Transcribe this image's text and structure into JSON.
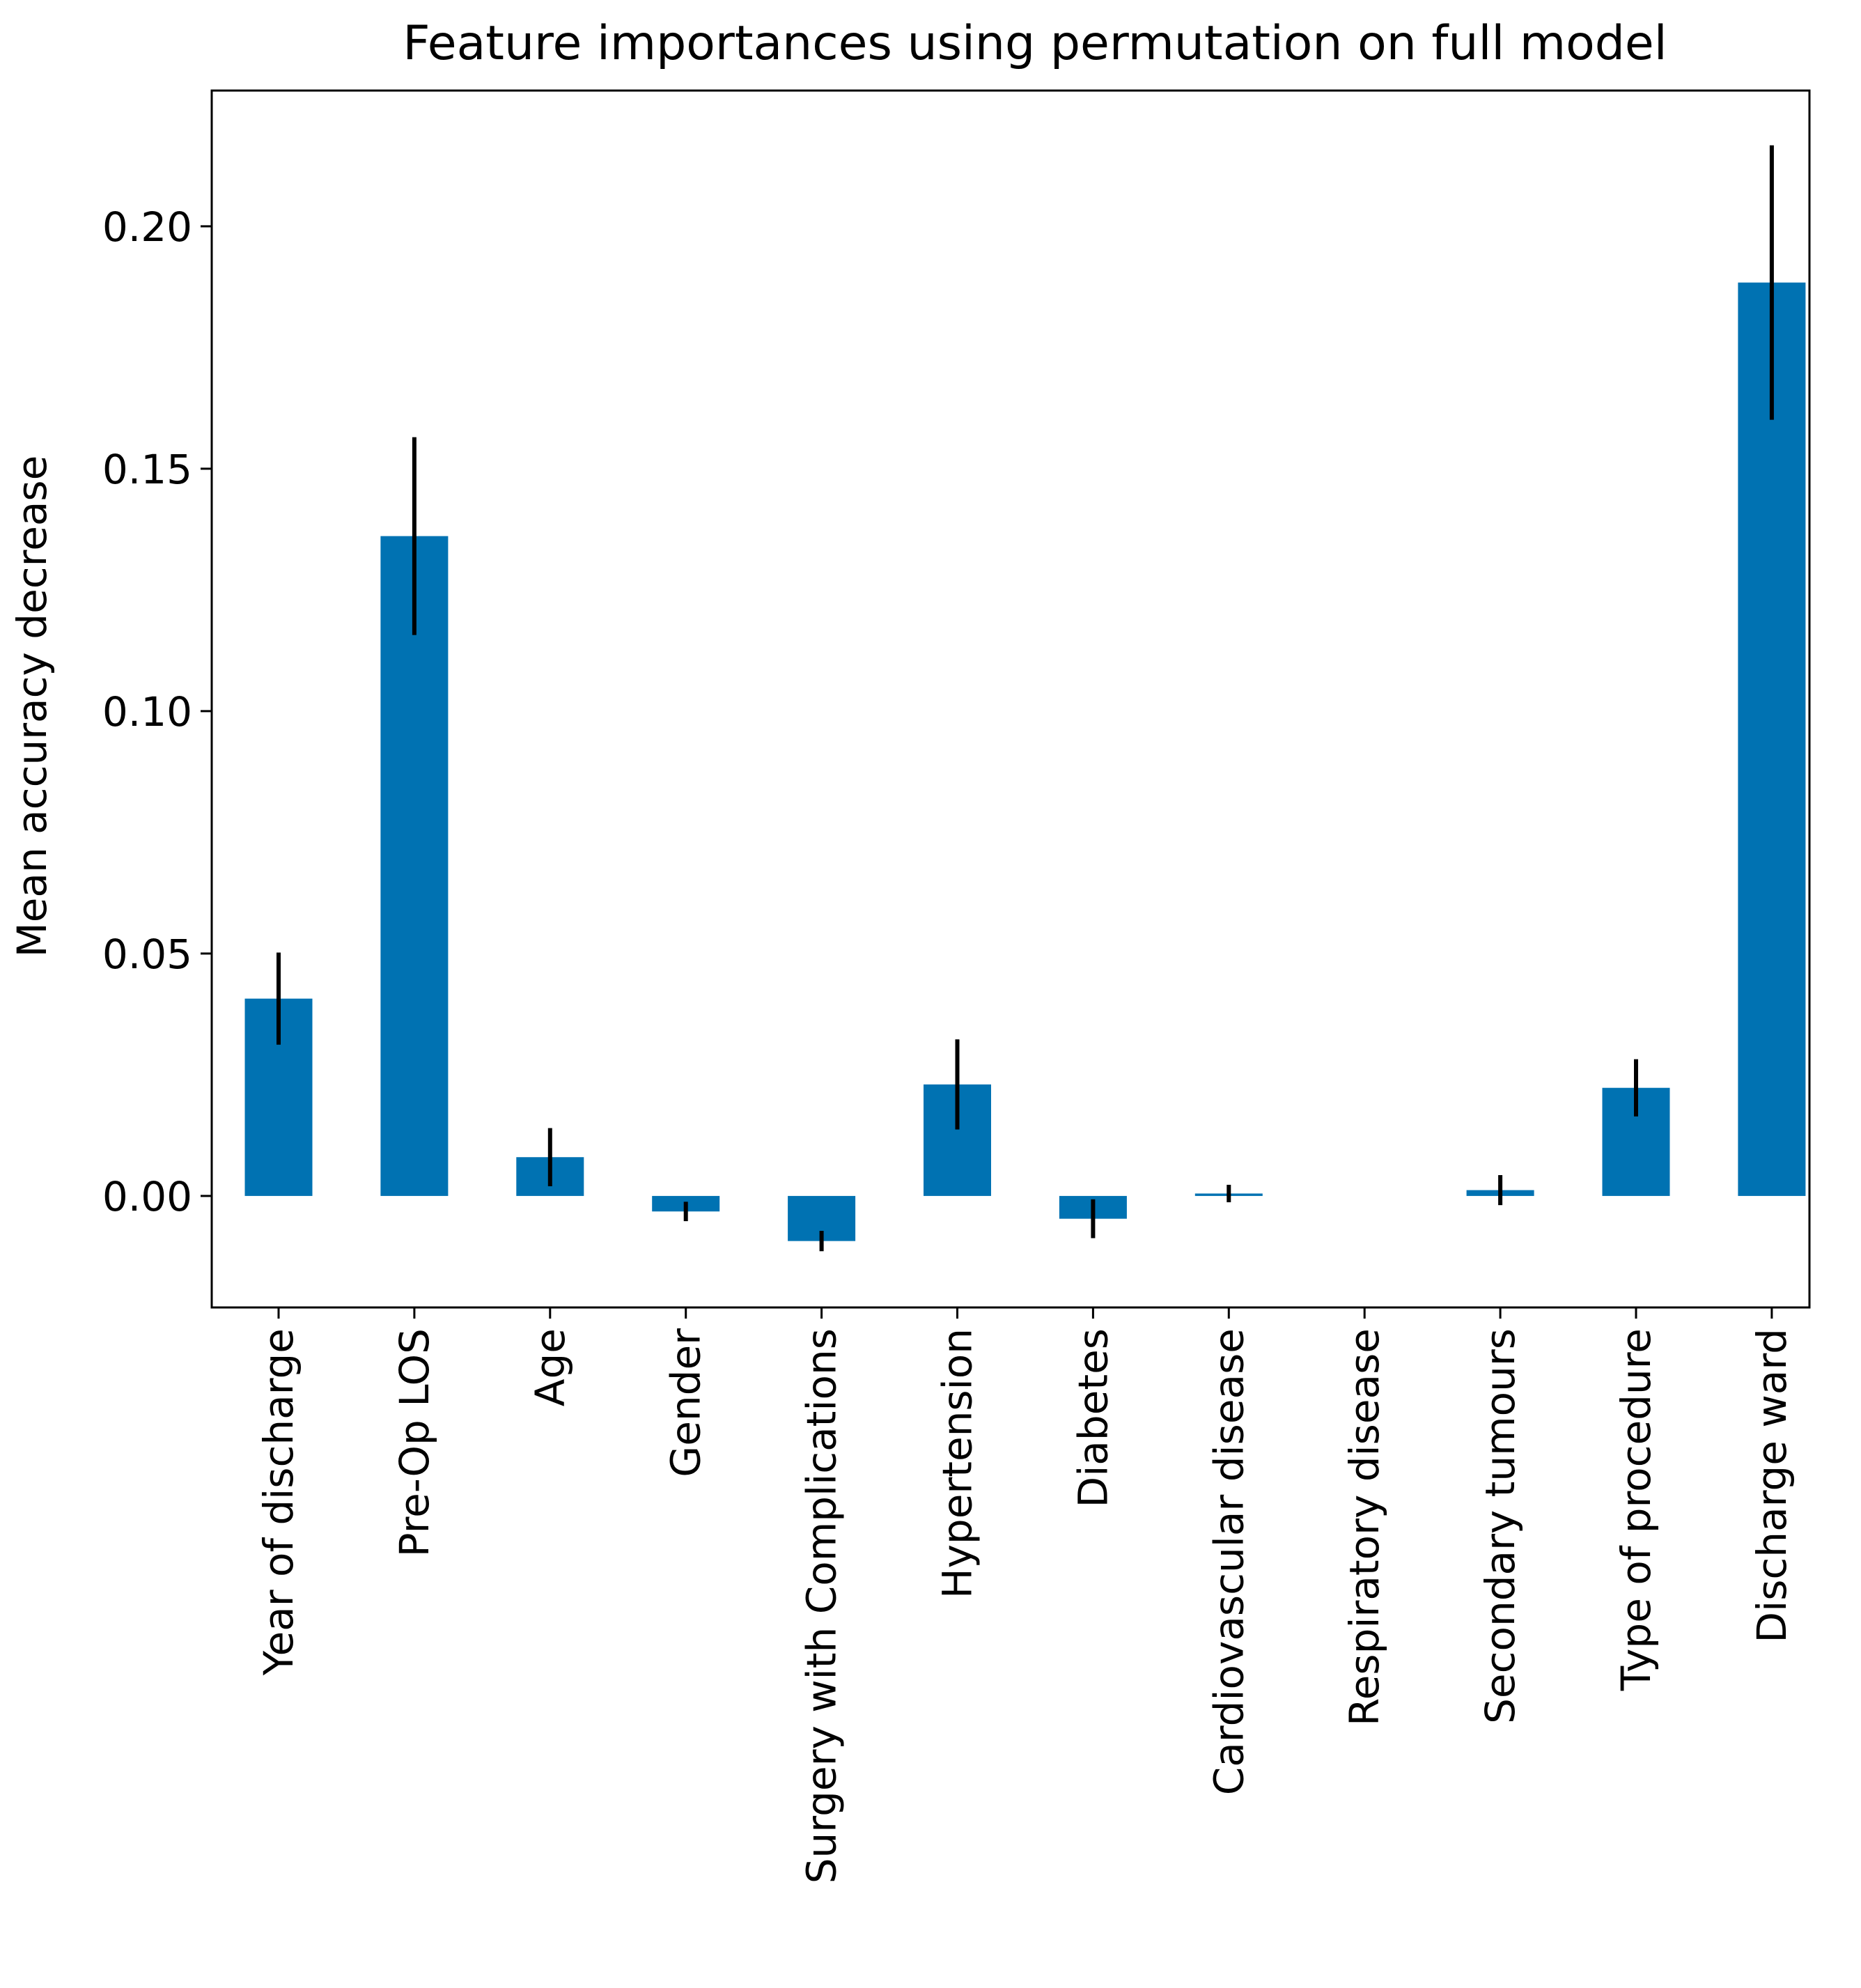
{
  "chart_data": {
    "type": "bar",
    "title": "Feature importances using permutation on full model",
    "xlabel": "",
    "ylabel": "Mean accuracy decrease",
    "ylim": [
      -0.023,
      0.228
    ],
    "yticks": [
      "0.00",
      "0.05",
      "0.10",
      "0.15",
      "0.20"
    ],
    "ytick_values": [
      0.0,
      0.05,
      0.1,
      0.15,
      0.2
    ],
    "grid": false,
    "bar_color": "#0072b2",
    "errorbar_color": "#000000",
    "categories": [
      "Year of discharge",
      "Pre-Op LOS",
      "Age",
      "Gender",
      "Surgery with Complications",
      "Hypertension",
      "Diabetes",
      "Cardiovascular disease",
      "Respiratory disease",
      "Secondary tumours",
      "Type of procedure",
      "Discharge ward"
    ],
    "values": [
      0.0407,
      0.1361,
      0.008,
      -0.0032,
      -0.0093,
      0.023,
      -0.0047,
      0.0005,
      0.0,
      0.0012,
      0.0223,
      0.1884
    ],
    "errors": [
      0.0095,
      0.0204,
      0.006,
      0.002,
      0.0021,
      0.0093,
      0.004,
      0.0018,
      0.0,
      0.0031,
      0.0059,
      0.0283
    ]
  }
}
